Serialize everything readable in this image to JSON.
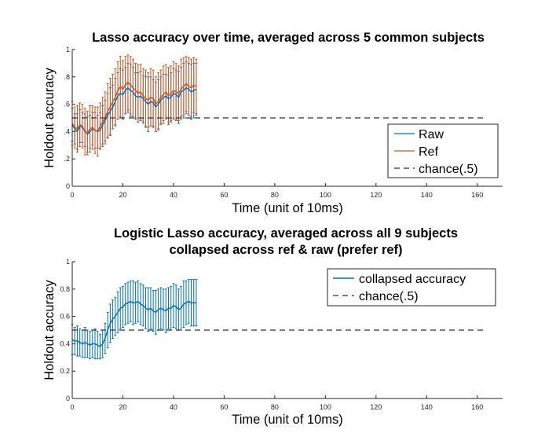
{
  "chart_data": [
    {
      "type": "line",
      "title": "Lasso accuracy over time, averaged across 5 common subjects",
      "xlabel": "Time (unit of 10ms)",
      "ylabel": "Holdout accuracy",
      "xlim": [
        0,
        170
      ],
      "ylim": [
        0,
        1
      ],
      "xticks": [
        "0",
        "20",
        "40",
        "60",
        "80",
        "100",
        "120",
        "140",
        "160"
      ],
      "yticks": [
        "0",
        ".2",
        ".4",
        ".6",
        ".8",
        "1"
      ],
      "legend_position": "bottom-right",
      "error_bars": true,
      "series": [
        {
          "name": "Raw",
          "color": "#0072BD",
          "x": [
            0,
            1,
            2,
            3,
            4,
            5,
            6,
            7,
            8,
            9,
            10,
            11,
            12,
            13,
            14,
            15,
            16,
            17,
            18,
            19,
            20,
            21,
            22,
            23,
            24,
            25,
            26,
            27,
            28,
            29,
            30,
            31,
            32,
            33,
            34,
            35,
            36,
            37,
            38,
            39,
            40,
            41,
            42,
            43,
            44,
            45,
            46,
            47,
            48,
            49
          ],
          "y": [
            0.45,
            0.42,
            0.4,
            0.44,
            0.43,
            0.41,
            0.38,
            0.4,
            0.42,
            0.41,
            0.4,
            0.41,
            0.45,
            0.48,
            0.52,
            0.55,
            0.58,
            0.62,
            0.66,
            0.68,
            0.67,
            0.7,
            0.72,
            0.7,
            0.69,
            0.66,
            0.65,
            0.66,
            0.64,
            0.62,
            0.6,
            0.62,
            0.61,
            0.58,
            0.6,
            0.63,
            0.65,
            0.66,
            0.64,
            0.65,
            0.68,
            0.67,
            0.65,
            0.69,
            0.7,
            0.72,
            0.71,
            0.69,
            0.7,
            0.71
          ],
          "err": [
            0.12,
            0.11,
            0.13,
            0.12,
            0.11,
            0.12,
            0.13,
            0.12,
            0.12,
            0.13,
            0.12,
            0.13,
            0.14,
            0.15,
            0.16,
            0.17,
            0.16,
            0.17,
            0.17,
            0.18,
            0.18,
            0.17,
            0.18,
            0.19,
            0.18,
            0.17,
            0.18,
            0.18,
            0.17,
            0.18,
            0.2,
            0.18,
            0.17,
            0.18,
            0.18,
            0.17,
            0.17,
            0.16,
            0.17,
            0.18,
            0.18,
            0.18,
            0.19,
            0.18,
            0.2,
            0.19,
            0.19,
            0.2,
            0.2,
            0.19
          ]
        },
        {
          "name": "Ref",
          "color": "#D95319",
          "x": [
            0,
            1,
            2,
            3,
            4,
            5,
            6,
            7,
            8,
            9,
            10,
            11,
            12,
            13,
            14,
            15,
            16,
            17,
            18,
            19,
            20,
            21,
            22,
            23,
            24,
            25,
            26,
            27,
            28,
            29,
            30,
            31,
            32,
            33,
            34,
            35,
            36,
            37,
            38,
            39,
            40,
            41,
            42,
            43,
            44,
            45,
            46,
            47,
            48,
            49
          ],
          "y": [
            0.46,
            0.43,
            0.42,
            0.45,
            0.44,
            0.4,
            0.39,
            0.42,
            0.43,
            0.41,
            0.4,
            0.44,
            0.47,
            0.5,
            0.55,
            0.58,
            0.62,
            0.65,
            0.7,
            0.73,
            0.71,
            0.74,
            0.76,
            0.74,
            0.72,
            0.7,
            0.68,
            0.69,
            0.66,
            0.64,
            0.63,
            0.65,
            0.64,
            0.6,
            0.62,
            0.65,
            0.67,
            0.69,
            0.66,
            0.68,
            0.7,
            0.69,
            0.68,
            0.71,
            0.73,
            0.75,
            0.73,
            0.72,
            0.74,
            0.73
          ],
          "err": [
            0.16,
            0.15,
            0.17,
            0.16,
            0.16,
            0.17,
            0.16,
            0.17,
            0.16,
            0.17,
            0.18,
            0.17,
            0.18,
            0.19,
            0.2,
            0.21,
            0.2,
            0.21,
            0.21,
            0.22,
            0.21,
            0.21,
            0.2,
            0.21,
            0.21,
            0.2,
            0.21,
            0.2,
            0.2,
            0.21,
            0.2,
            0.21,
            0.21,
            0.2,
            0.21,
            0.2,
            0.21,
            0.2,
            0.21,
            0.2,
            0.21,
            0.21,
            0.2,
            0.22,
            0.21,
            0.2,
            0.21,
            0.21,
            0.2,
            0.2
          ]
        },
        {
          "name": "chance(.5)",
          "color": "#333333",
          "dashed": true,
          "x": [
            0,
            163
          ],
          "y": [
            0.5,
            0.5
          ]
        }
      ]
    },
    {
      "type": "line",
      "title": "Logistic Lasso accuracy, averaged across all 9 subjects",
      "subtitle": "collapsed across ref & raw (prefer ref)",
      "xlabel": "Time (unit of 10ms)",
      "ylabel": "Holdout accuracy",
      "xlim": [
        0,
        170
      ],
      "ylim": [
        0,
        1
      ],
      "xticks": [
        "0",
        "20",
        "40",
        "60",
        "80",
        "100",
        "120",
        "140",
        "160"
      ],
      "yticks": [
        "0",
        "0.2",
        "0.4",
        "0.6",
        "0.8",
        "1"
      ],
      "legend_position": "top-right",
      "error_bars": true,
      "series": [
        {
          "name": "collapsed accuracy",
          "color": "#0072BD",
          "x": [
            0,
            1,
            2,
            3,
            4,
            5,
            6,
            7,
            8,
            9,
            10,
            11,
            12,
            13,
            14,
            15,
            16,
            17,
            18,
            19,
            20,
            21,
            22,
            23,
            24,
            25,
            26,
            27,
            28,
            29,
            30,
            31,
            32,
            33,
            34,
            35,
            36,
            37,
            38,
            39,
            40,
            41,
            42,
            43,
            44,
            45,
            46,
            47,
            48,
            49
          ],
          "y": [
            0.43,
            0.42,
            0.42,
            0.41,
            0.4,
            0.41,
            0.4,
            0.39,
            0.4,
            0.4,
            0.39,
            0.38,
            0.4,
            0.44,
            0.5,
            0.55,
            0.58,
            0.6,
            0.63,
            0.66,
            0.67,
            0.69,
            0.7,
            0.71,
            0.7,
            0.7,
            0.71,
            0.69,
            0.68,
            0.66,
            0.65,
            0.66,
            0.64,
            0.63,
            0.65,
            0.66,
            0.65,
            0.64,
            0.66,
            0.66,
            0.68,
            0.67,
            0.65,
            0.66,
            0.69,
            0.7,
            0.71,
            0.7,
            0.7,
            0.7
          ],
          "err": [
            0.11,
            0.1,
            0.11,
            0.1,
            0.1,
            0.11,
            0.1,
            0.1,
            0.1,
            0.11,
            0.1,
            0.09,
            0.1,
            0.11,
            0.13,
            0.14,
            0.14,
            0.14,
            0.15,
            0.15,
            0.15,
            0.15,
            0.15,
            0.15,
            0.16,
            0.15,
            0.15,
            0.15,
            0.15,
            0.15,
            0.16,
            0.15,
            0.15,
            0.16,
            0.15,
            0.15,
            0.15,
            0.16,
            0.15,
            0.16,
            0.16,
            0.16,
            0.15,
            0.16,
            0.17,
            0.16,
            0.16,
            0.17,
            0.17,
            0.17
          ]
        },
        {
          "name": "chance(.5)",
          "color": "#333333",
          "dashed": true,
          "x": [
            0,
            163
          ],
          "y": [
            0.5,
            0.5
          ]
        }
      ]
    }
  ]
}
